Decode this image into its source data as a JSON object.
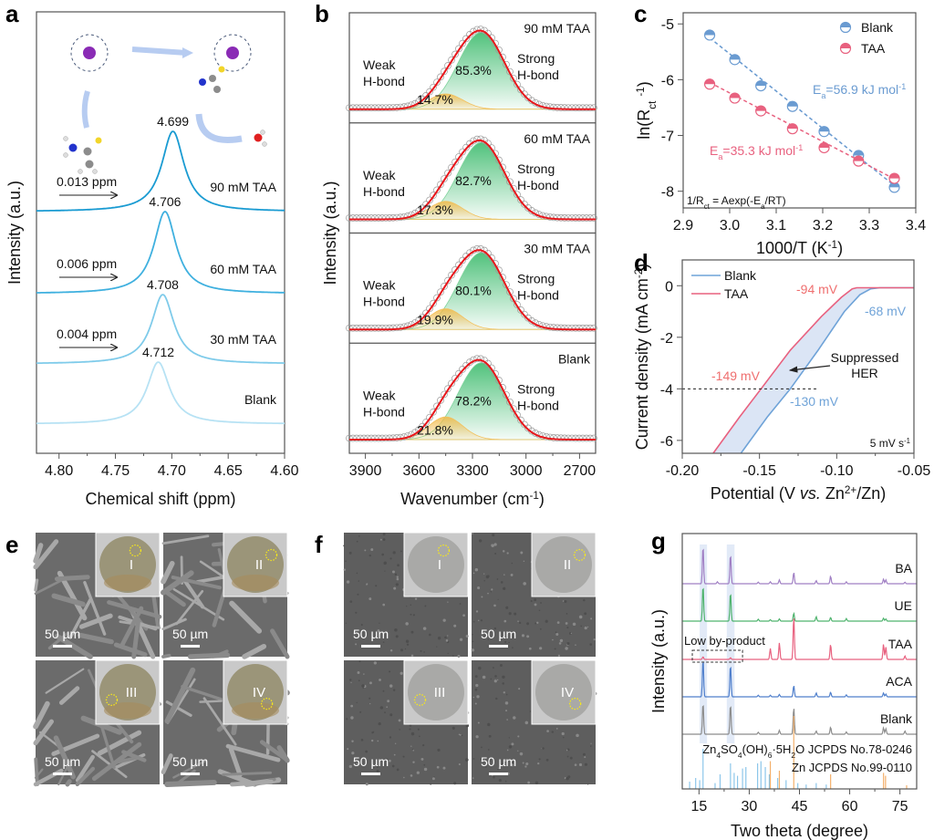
{
  "panel_labels": {
    "a": "a",
    "b": "b",
    "c": "c",
    "d": "d",
    "e": "e",
    "f": "f",
    "g": "g"
  },
  "chart_data": [
    {
      "id": "a",
      "type": "line",
      "title": "",
      "xlabel": "Chemical shift (ppm)",
      "ylabel": "Intensity (a.u.)",
      "xlim": [
        4.82,
        4.6
      ],
      "x_reversed": true,
      "xticks": [
        "4.80",
        "4.75",
        "4.70",
        "4.65",
        "4.60"
      ],
      "xtick_values": [
        4.8,
        4.75,
        4.7,
        4.65,
        4.6
      ],
      "series": [
        {
          "name": "90 mM TAA",
          "peak": 4.699,
          "peak_label": "4.699",
          "shift_label": "0.013 ppm",
          "color": "#1a9bd2"
        },
        {
          "name": "60 mM TAA",
          "peak": 4.706,
          "peak_label": "4.706",
          "shift_label": "0.006 ppm",
          "color": "#3fb0df"
        },
        {
          "name": "30 mM TAA",
          "peak": 4.708,
          "peak_label": "4.708",
          "shift_label": "0.004 ppm",
          "color": "#7fcbea"
        },
        {
          "name": "Blank",
          "peak": 4.712,
          "peak_label": "4.712",
          "shift_label": "",
          "color": "#b7e2f4"
        }
      ]
    },
    {
      "id": "b",
      "type": "area",
      "xlabel": "Wavenumber (cm⁻¹)",
      "ylabel": "Intensity (a.u.)",
      "xlim": [
        3990,
        2610
      ],
      "x_reversed": true,
      "xticks": [
        "3900",
        "3600",
        "3300",
        "3000",
        "2700"
      ],
      "xtick_values": [
        3900,
        3600,
        3300,
        3000,
        2700
      ],
      "weak_label": [
        "Weak",
        "H-bond"
      ],
      "strong_label": [
        "Strong",
        "H-bond"
      ],
      "weak_center": 3450,
      "strong_center": 3250,
      "series": [
        {
          "name": "90 mM TAA",
          "weak_pct": 14.7,
          "strong_pct": 85.3,
          "weak_label": "14.7%",
          "strong_label": "85.3%"
        },
        {
          "name": "60 mM TAA",
          "weak_pct": 17.3,
          "strong_pct": 82.7,
          "weak_label": "17.3%",
          "strong_label": "82.7%"
        },
        {
          "name": "30 mM TAA",
          "weak_pct": 19.9,
          "strong_pct": 80.1,
          "weak_label": "19.9%",
          "strong_label": "80.1%"
        },
        {
          "name": "Blank",
          "weak_pct": 21.8,
          "strong_pct": 78.2,
          "weak_label": "21.8%",
          "strong_label": "78.2%"
        }
      ],
      "colors": {
        "fit": "#e8161b",
        "weak": "#f2c05c",
        "strong": "#3dbb6d",
        "data": "#9a9a9a"
      }
    },
    {
      "id": "c",
      "type": "scatter",
      "xlabel": "1000/T (K⁻¹)",
      "ylabel": "ln(Rct⁻¹)",
      "xlim": [
        2.9,
        3.4
      ],
      "ylim": [
        -8.3,
        -4.8
      ],
      "xticks": [
        "2.9",
        "3.0",
        "3.1",
        "3.2",
        "3.3",
        "3.4"
      ],
      "xtick_values": [
        2.9,
        3.0,
        3.1,
        3.2,
        3.3,
        3.4
      ],
      "yticks": [
        "-5",
        "-6",
        "-7",
        "-8"
      ],
      "ytick_values": [
        -5,
        -6,
        -7,
        -8
      ],
      "legend": "top-right",
      "equation": "1/Rct = Aexp(-Ea/RT)",
      "series": [
        {
          "name": "Blank",
          "color": "#6a9bd1",
          "x": [
            2.957,
            3.011,
            3.067,
            3.135,
            3.203,
            3.277,
            3.354
          ],
          "y": [
            -5.2,
            -5.64,
            -6.11,
            -6.48,
            -6.93,
            -7.36,
            -7.93
          ],
          "ea_label": "Ea=56.9 kJ mol⁻¹",
          "fit": [
            [
              2.957,
              -5.25
            ],
            [
              3.354,
              -7.9
            ]
          ]
        },
        {
          "name": "TAA",
          "color": "#e8617f",
          "x": [
            2.957,
            3.011,
            3.067,
            3.135,
            3.203,
            3.277,
            3.354
          ],
          "y": [
            -6.08,
            -6.33,
            -6.56,
            -6.88,
            -7.22,
            -7.46,
            -7.77
          ],
          "ea_label": "Ea=35.3 kJ mol⁻¹",
          "fit": [
            [
              2.957,
              -6.05
            ],
            [
              3.354,
              -7.78
            ]
          ]
        }
      ]
    },
    {
      "id": "d",
      "type": "line",
      "xlabel": "Potential (V vs. Zn²⁺/Zn)",
      "ylabel": "Current density (mA cm⁻²)",
      "xlim": [
        -0.2,
        -0.05
      ],
      "ylim": [
        -6.5,
        1.0
      ],
      "xticks": [
        "-0.20",
        "-0.15",
        "-0.10",
        "-0.05"
      ],
      "xtick_values": [
        -0.2,
        -0.15,
        -0.1,
        -0.05
      ],
      "yticks": [
        "0",
        "-2",
        "-4",
        "-6"
      ],
      "ytick_values": [
        0,
        -2,
        -4,
        -6
      ],
      "legend": "top-left",
      "scan_rate": "5 mV s⁻¹",
      "reference_line": -4,
      "annotation": [
        "Suppressed",
        "HER"
      ],
      "series": [
        {
          "name": "Blank",
          "color": "#6fa3d8",
          "x": [
            -0.162,
            -0.145,
            -0.13,
            -0.112,
            -0.095,
            -0.085,
            -0.078,
            -0.072,
            -0.05
          ],
          "y": [
            -6.5,
            -5.1,
            -4.0,
            -2.5,
            -1.0,
            -0.35,
            -0.12,
            -0.08,
            -0.08
          ]
        },
        {
          "name": "TAA",
          "color": "#e8617f",
          "x": [
            -0.18,
            -0.163,
            -0.149,
            -0.13,
            -0.11,
            -0.097,
            -0.09,
            -0.087,
            -0.05
          ],
          "y": [
            -6.5,
            -5.1,
            -4.0,
            -2.5,
            -1.2,
            -0.45,
            -0.12,
            -0.08,
            -0.08
          ]
        }
      ],
      "onset_labels": [
        {
          "text": "-94 mV",
          "series": "TAA"
        },
        {
          "text": "-68 mV",
          "series": "Blank"
        },
        {
          "text": "-149 mV",
          "series": "TAA"
        },
        {
          "text": "-130 mV",
          "series": "Blank"
        }
      ],
      "shade_color": "#dbe5f5"
    },
    {
      "id": "g",
      "type": "line",
      "xlabel": "Two theta (degree)",
      "ylabel": "Intensity (a.u.)",
      "xlim": [
        10,
        80
      ],
      "xticks": [
        "15",
        "30",
        "45",
        "60",
        "75"
      ],
      "xtick_values": [
        15,
        30,
        45,
        60,
        75
      ],
      "highlight_ranges": [
        [
          15.2,
          17.4
        ],
        [
          23.3,
          25.6
        ]
      ],
      "highlight_note": "Low by-product",
      "series": [
        {
          "name": "BA",
          "color": "#a07fc4",
          "peaks": [
            [
              16.2,
              1.0
            ],
            [
              24.4,
              0.78
            ],
            [
              20.5,
              0.05
            ],
            [
              32.7,
              0.04
            ],
            [
              36.3,
              0.05
            ],
            [
              39.0,
              0.1
            ],
            [
              43.3,
              0.3
            ],
            [
              50.0,
              0.08
            ],
            [
              54.3,
              0.2
            ],
            [
              59.0,
              0.05
            ],
            [
              70.1,
              0.12
            ],
            [
              70.8,
              0.1
            ],
            [
              76.5,
              0.04
            ]
          ]
        },
        {
          "name": "UE",
          "color": "#4fb36e",
          "peaks": [
            [
              16.2,
              1.0
            ],
            [
              24.4,
              0.8
            ],
            [
              32.7,
              0.05
            ],
            [
              36.3,
              0.04
            ],
            [
              39.0,
              0.06
            ],
            [
              43.3,
              0.22
            ],
            [
              50.0,
              0.12
            ],
            [
              54.3,
              0.1
            ],
            [
              59.0,
              0.07
            ],
            [
              70.1,
              0.08
            ],
            [
              70.8,
              0.06
            ]
          ]
        },
        {
          "name": "TAA",
          "color": "#e8617f",
          "peaks": [
            [
              16.2,
              0.06
            ],
            [
              24.4,
              0.04
            ],
            [
              36.3,
              0.25
            ],
            [
              39.0,
              0.38
            ],
            [
              43.3,
              1.0
            ],
            [
              54.3,
              0.35
            ],
            [
              70.1,
              0.35
            ],
            [
              70.8,
              0.28
            ],
            [
              76.5,
              0.08
            ]
          ]
        },
        {
          "name": "ACA",
          "color": "#4f7fcc",
          "peaks": [
            [
              16.2,
              1.0
            ],
            [
              24.4,
              0.85
            ],
            [
              32.7,
              0.04
            ],
            [
              36.3,
              0.04
            ],
            [
              39.0,
              0.06
            ],
            [
              43.3,
              0.3
            ],
            [
              50.0,
              0.1
            ],
            [
              54.3,
              0.12
            ],
            [
              59.0,
              0.05
            ],
            [
              70.1,
              0.1
            ],
            [
              70.8,
              0.07
            ]
          ]
        },
        {
          "name": "Blank",
          "color": "#8c8c8c",
          "peaks": [
            [
              16.2,
              1.0
            ],
            [
              24.4,
              0.95
            ],
            [
              32.7,
              0.06
            ],
            [
              39.0,
              0.12
            ],
            [
              43.3,
              0.85
            ],
            [
              50.0,
              0.1
            ],
            [
              54.3,
              0.22
            ],
            [
              59.0,
              0.07
            ],
            [
              70.1,
              0.2
            ],
            [
              70.8,
              0.17
            ],
            [
              76.5,
              0.1
            ]
          ]
        }
      ],
      "references": [
        {
          "name": "Zn4SO4(OH)6·5H2O JCPDS No.78-0246",
          "color": "#8cc6ea",
          "peaks": [
            [
              12.2,
              0.1
            ],
            [
              14.0,
              0.15
            ],
            [
              15.2,
              0.12
            ],
            [
              16.2,
              0.55
            ],
            [
              19.8,
              0.08
            ],
            [
              21.3,
              0.2
            ],
            [
              24.4,
              0.35
            ],
            [
              25.5,
              0.22
            ],
            [
              26.5,
              0.18
            ],
            [
              28.0,
              0.28
            ],
            [
              29.0,
              0.3
            ],
            [
              32.5,
              0.35
            ],
            [
              33.5,
              0.38
            ],
            [
              34.8,
              0.3
            ],
            [
              36.0,
              0.2
            ],
            [
              38.5,
              0.15
            ],
            [
              41.0,
              0.12
            ],
            [
              44.5,
              0.08
            ],
            [
              47.0,
              0.06
            ],
            [
              50.0,
              0.08
            ],
            [
              53.0,
              0.06
            ]
          ]
        },
        {
          "name": "Zn JCPDS No.99-0110",
          "color": "#f3b06b",
          "peaks": [
            [
              36.3,
              0.38
            ],
            [
              39.0,
              0.25
            ],
            [
              43.3,
              1.0
            ],
            [
              54.3,
              0.2
            ],
            [
              70.1,
              0.22
            ],
            [
              70.7,
              0.18
            ],
            [
              77.0,
              0.05
            ]
          ]
        }
      ]
    }
  ],
  "sem_panels": {
    "e": {
      "tiles": [
        {
          "roman": "I",
          "scale": "50 µm"
        },
        {
          "roman": "II",
          "scale": "50 µm"
        },
        {
          "roman": "III",
          "scale": "50 µm"
        },
        {
          "roman": "IV",
          "scale": "50 µm"
        }
      ],
      "style": "rough"
    },
    "f": {
      "tiles": [
        {
          "roman": "I",
          "scale": "50 µm"
        },
        {
          "roman": "II",
          "scale": "50 µm"
        },
        {
          "roman": "III",
          "scale": "50 µm"
        },
        {
          "roman": "IV",
          "scale": "50 µm"
        }
      ],
      "style": "smooth"
    }
  }
}
